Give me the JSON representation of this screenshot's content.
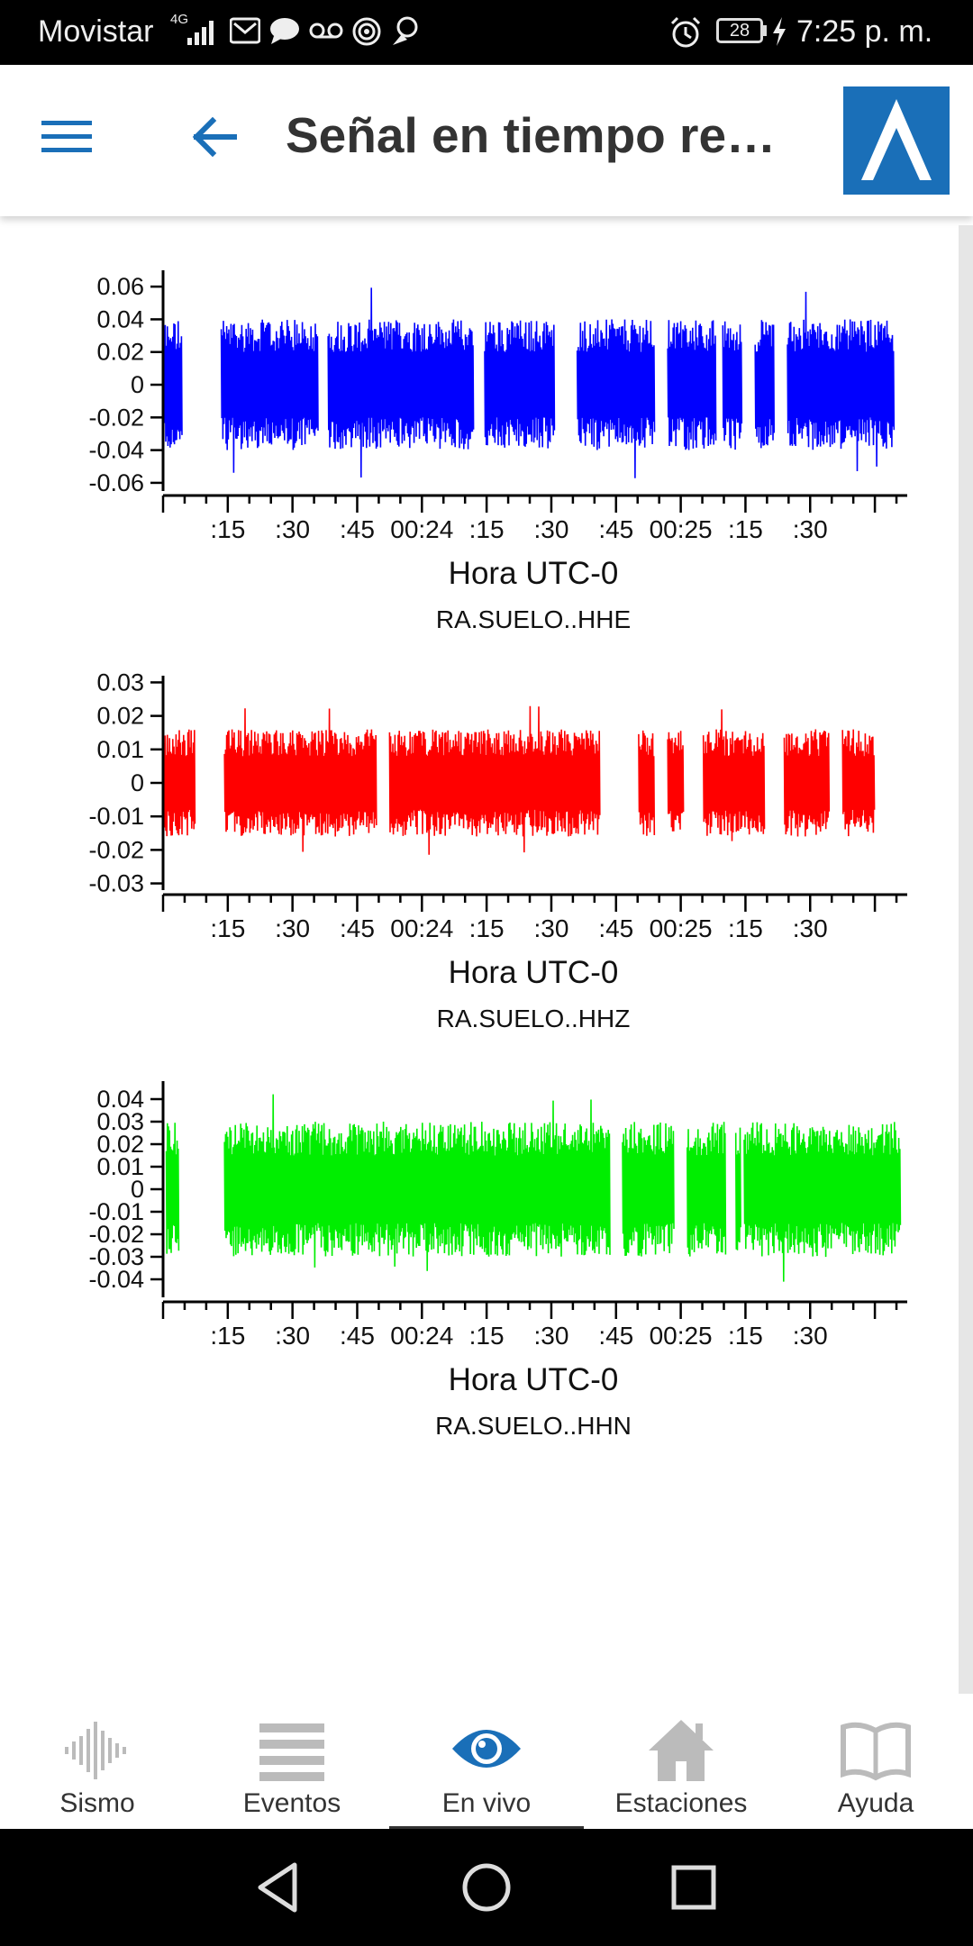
{
  "status_bar": {
    "carrier": "Movistar",
    "network": "4G",
    "battery": "28",
    "time": "7:25 p. m."
  },
  "header": {
    "title": "Señal en tiempo re…"
  },
  "charts": {
    "xlabel": "Hora UTC-0",
    "x_ticks": [
      ":15",
      ":30",
      ":45",
      "00:24",
      ":15",
      ":30",
      ":45",
      "00:25",
      ":15",
      ":30"
    ]
  },
  "chart_data": [
    {
      "type": "line",
      "title": "RA.SUELO..HHE",
      "xlabel": "Hora UTC-0",
      "ylabel": "",
      "ylim": [
        -0.065,
        0.07
      ],
      "y_ticks": [
        "0.06",
        "0.04",
        "0.02",
        "0",
        "-0.02",
        "-0.04",
        "-0.06"
      ],
      "y_tick_values": [
        0.06,
        0.04,
        0.02,
        0,
        -0.02,
        -0.04,
        -0.06
      ],
      "x_ticks": [
        ":15",
        ":30",
        ":45",
        "00:24",
        ":15",
        ":30",
        ":45",
        "00:25",
        ":15",
        ":30"
      ],
      "series": [
        {
          "color": "#0000ff",
          "amplitude": 0.04,
          "peak": 0.06,
          "segments": [
            [
              0.0,
              0.3
            ],
            [
              0.9,
              2.4
            ],
            [
              2.55,
              4.8
            ],
            [
              4.97,
              6.05
            ],
            [
              6.4,
              7.6
            ],
            [
              7.8,
              8.55
            ],
            [
              8.65,
              8.95
            ],
            [
              9.15,
              9.45
            ],
            [
              9.65,
              11.3
            ]
          ]
        }
      ]
    },
    {
      "type": "line",
      "title": "RA.SUELO..HHZ",
      "xlabel": "Hora UTC-0",
      "ylabel": "",
      "ylim": [
        -0.032,
        0.032
      ],
      "y_ticks": [
        "0.03",
        "0.02",
        "0.01",
        "0",
        "-0.01",
        "-0.02",
        "-0.03"
      ],
      "y_tick_values": [
        0.03,
        0.02,
        0.01,
        0,
        -0.01,
        -0.02,
        -0.03
      ],
      "x_ticks": [
        ":15",
        ":30",
        ":45",
        "00:24",
        ":15",
        ":30",
        ":45",
        "00:25",
        ":15",
        ":30"
      ],
      "series": [
        {
          "color": "#ff0000",
          "amplitude": 0.016,
          "peak": 0.023,
          "segments": [
            [
              0.0,
              0.5
            ],
            [
              0.95,
              3.3
            ],
            [
              3.5,
              6.75
            ],
            [
              7.35,
              7.6
            ],
            [
              7.8,
              8.05
            ],
            [
              8.35,
              9.3
            ],
            [
              9.6,
              10.3
            ],
            [
              10.5,
              11.0
            ]
          ]
        }
      ]
    },
    {
      "type": "line",
      "title": "RA.SUELO..HHN",
      "xlabel": "Hora UTC-0",
      "ylabel": "",
      "ylim": [
        -0.048,
        0.048
      ],
      "y_ticks": [
        "0.04",
        "0.03",
        "0.02",
        "0.01",
        "0",
        "-0.01",
        "-0.02",
        "-0.03",
        "-0.04"
      ],
      "y_tick_values": [
        0.04,
        0.03,
        0.02,
        0.01,
        0,
        -0.01,
        -0.02,
        -0.03,
        -0.04
      ],
      "x_ticks": [
        ":15",
        ":30",
        ":45",
        "00:24",
        ":15",
        ":30",
        ":45",
        "00:25",
        ":15",
        ":30"
      ],
      "series": [
        {
          "color": "#00ee00",
          "amplitude": 0.03,
          "peak": 0.045,
          "segments": [
            [
              0.05,
              0.25
            ],
            [
              0.95,
              6.9
            ],
            [
              7.1,
              7.9
            ],
            [
              8.1,
              8.7
            ],
            [
              8.85,
              8.92
            ],
            [
              8.98,
              11.4
            ]
          ]
        }
      ]
    }
  ],
  "bottom_nav": {
    "items": [
      {
        "label": "Sismo",
        "icon": "waveform-icon",
        "color": "#bbbbbb"
      },
      {
        "label": "Eventos",
        "icon": "list-icon",
        "color": "#bbbbbb"
      },
      {
        "label": "En vivo",
        "icon": "eye-icon",
        "color": "#1a6fb8"
      },
      {
        "label": "Estaciones",
        "icon": "home-icon",
        "color": "#bbbbbb"
      },
      {
        "label": "Ayuda",
        "icon": "book-icon",
        "color": "#bbbbbb"
      }
    ]
  }
}
